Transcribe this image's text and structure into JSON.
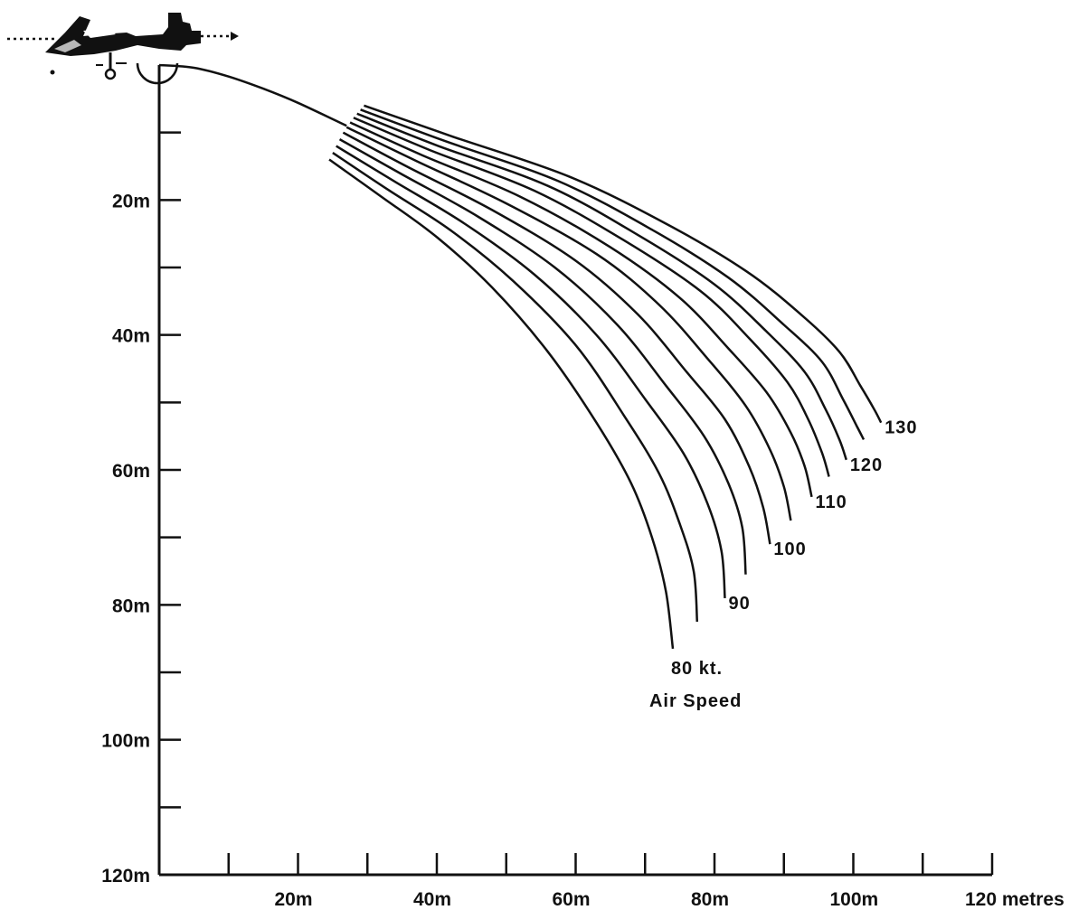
{
  "chart_data": {
    "type": "line",
    "title": "",
    "xlabel": "",
    "ylabel": "",
    "x_unit_label": "metres",
    "xlim": [
      0,
      120
    ],
    "ylim": [
      0,
      120
    ],
    "y_axis_inverted": true,
    "grid": false,
    "x_ticks": [
      0,
      10,
      20,
      30,
      40,
      50,
      60,
      70,
      80,
      90,
      100,
      110,
      120
    ],
    "x_tick_labels": [
      "20m",
      "40m",
      "60m",
      "80m",
      "100m",
      "120 metres"
    ],
    "x_tick_label_values": [
      20,
      40,
      60,
      80,
      100,
      120
    ],
    "y_ticks": [
      10,
      20,
      30,
      40,
      50,
      60,
      70,
      80,
      90,
      100,
      110,
      120
    ],
    "y_tick_labels": [
      "20m",
      "40m",
      "60m",
      "80m",
      "100m",
      "120m"
    ],
    "y_tick_label_values": [
      20,
      40,
      60,
      80,
      100,
      120
    ],
    "common_path": {
      "x": [
        0,
        5,
        10,
        15,
        20,
        27
      ],
      "y": [
        0,
        0.4,
        1.7,
        3.5,
        5.6,
        9.0
      ]
    },
    "annotation": "Air Speed",
    "series": [
      {
        "name": "80 kt.",
        "x": [
          24.5,
          32,
          40,
          48,
          56,
          63,
          68,
          71,
          73,
          74
        ],
        "y": [
          14.0,
          19.5,
          25.5,
          33.0,
          42.5,
          53.0,
          62.0,
          70.0,
          78.0,
          86.5
        ]
      },
      {
        "name": "",
        "x": [
          25,
          33,
          42,
          51,
          60,
          67,
          72,
          75,
          77,
          77.5
        ],
        "y": [
          13.0,
          18.5,
          24.5,
          32.0,
          41.5,
          52.0,
          60.5,
          68.0,
          75.0,
          82.5
        ]
      },
      {
        "name": "90",
        "x": [
          25.5,
          34,
          44,
          54,
          63,
          70,
          75.5,
          79,
          81,
          81.5
        ],
        "y": [
          12.0,
          17.3,
          23.5,
          31.0,
          40.0,
          49.5,
          57.5,
          65.0,
          72.0,
          79.0
        ]
      },
      {
        "name": "",
        "x": [
          26,
          35,
          46,
          57,
          66,
          73,
          78.5,
          82,
          84,
          84.5
        ],
        "y": [
          11.0,
          16.2,
          22.5,
          30.0,
          38.5,
          47.5,
          55.0,
          62.0,
          68.5,
          75.5
        ]
      },
      {
        "name": "100",
        "x": [
          26.5,
          36,
          48,
          60,
          69,
          76,
          81.5,
          85,
          87,
          88
        ],
        "y": [
          10.0,
          15.2,
          21.5,
          29.0,
          37.0,
          45.5,
          52.5,
          59.5,
          65.5,
          71.0
        ]
      },
      {
        "name": "",
        "x": [
          27,
          37,
          50,
          63,
          72,
          79,
          84.5,
          88,
          90,
          91
        ],
        "y": [
          9.2,
          14.2,
          20.5,
          28.0,
          35.5,
          43.5,
          50.5,
          57.0,
          62.5,
          67.5
        ]
      },
      {
        "name": "110",
        "x": [
          27.5,
          38,
          52,
          65,
          75,
          82,
          87.5,
          91,
          93,
          94
        ],
        "y": [
          8.5,
          13.4,
          19.5,
          27.0,
          34.5,
          42.0,
          48.5,
          54.5,
          59.5,
          64.0
        ]
      },
      {
        "name": "",
        "x": [
          28,
          39,
          54,
          67,
          78,
          85,
          90.5,
          93.5,
          95.5,
          96.5
        ],
        "y": [
          7.8,
          12.6,
          18.6,
          26.0,
          33.5,
          40.5,
          47.0,
          52.5,
          57.5,
          61.0
        ]
      },
      {
        "name": "120",
        "x": [
          28.5,
          40,
          56,
          69,
          80,
          87.5,
          93,
          96,
          98,
          99
        ],
        "y": [
          7.2,
          11.9,
          17.9,
          25.2,
          32.5,
          39.5,
          45.5,
          51.0,
          55.5,
          58.5
        ]
      },
      {
        "name": "",
        "x": [
          29,
          41,
          57.5,
          71,
          82,
          90,
          95.5,
          98.5,
          100.5,
          101.5
        ],
        "y": [
          6.6,
          11.2,
          17.2,
          24.4,
          31.5,
          38.5,
          44.0,
          49.5,
          53.5,
          55.5
        ]
      },
      {
        "name": "130",
        "x": [
          29.5,
          42,
          59,
          73,
          84.5,
          92.5,
          98,
          101,
          103,
          104
        ],
        "y": [
          6.0,
          10.5,
          16.5,
          23.5,
          30.5,
          37.0,
          42.5,
          47.5,
          51.0,
          53.0
        ]
      }
    ],
    "label_positions_series_index": [
      0,
      2,
      4,
      6,
      8,
      10
    ]
  }
}
